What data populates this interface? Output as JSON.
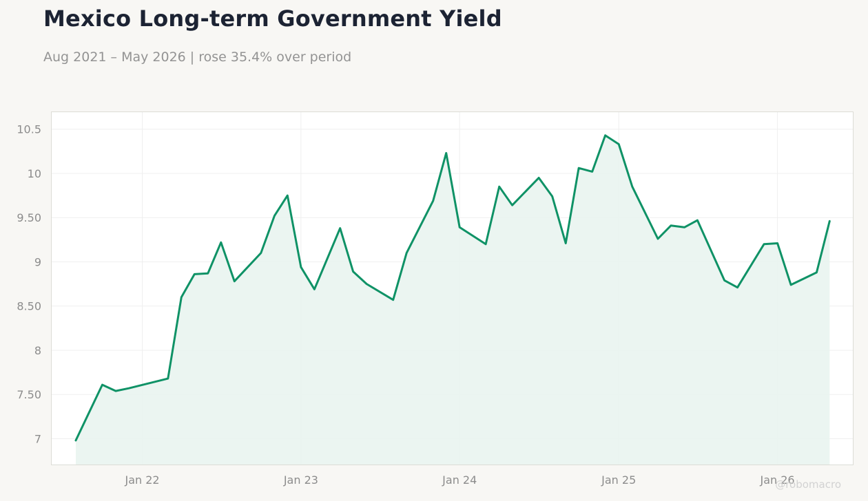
{
  "header": {
    "title": "Mexico Long-term Government Yield",
    "subtitle": "Aug 2021 – May 2026 | rose 35.4% over period"
  },
  "watermark": "@robomacro",
  "colors": {
    "line": "#0f9266",
    "area": "#e9f4f0",
    "grid": "#efefef",
    "frame": "#dcdcd6",
    "plot_bg": "#ffffff",
    "page_bg": "#f8f7f4"
  },
  "chart_data": {
    "type": "area",
    "title": "Mexico Long-term Government Yield",
    "subtitle": "Aug 2021 – May 2026 | rose 35.4% over period",
    "xlabel": "",
    "ylabel": "",
    "ylim": [
      6.7,
      10.7
    ],
    "xlim": [
      "2021-06-05",
      "2026-06-25"
    ],
    "grid": true,
    "legend": "none",
    "y_ticks": [
      {
        "value": 7,
        "label": "7"
      },
      {
        "value": 7.5,
        "label": "7.50"
      },
      {
        "value": 8,
        "label": "8"
      },
      {
        "value": 8.5,
        "label": "8.50"
      },
      {
        "value": 9,
        "label": "9"
      },
      {
        "value": 9.5,
        "label": "9.50"
      },
      {
        "value": 10,
        "label": "10"
      },
      {
        "value": 10.5,
        "label": "10.5"
      }
    ],
    "x_ticks": [
      {
        "date": "2022-01-01",
        "label": "Jan 22"
      },
      {
        "date": "2023-01-01",
        "label": "Jan 23"
      },
      {
        "date": "2024-01-01",
        "label": "Jan 24"
      },
      {
        "date": "2025-01-01",
        "label": "Jan 25"
      },
      {
        "date": "2026-01-01",
        "label": "Jan 26"
      }
    ],
    "series": [
      {
        "x": [
          "2021-08-01",
          "2021-10-01",
          "2021-11-01",
          "2021-12-01",
          "2022-03-01",
          "2022-04-01",
          "2022-05-01",
          "2022-06-01",
          "2022-07-01",
          "2022-08-01",
          "2022-10-01",
          "2022-11-01",
          "2022-12-01",
          "2023-01-01",
          "2023-02-01",
          "2023-04-01",
          "2023-05-01",
          "2023-06-01",
          "2023-08-01",
          "2023-09-01",
          "2023-11-01",
          "2023-12-01",
          "2024-01-01",
          "2024-03-01",
          "2024-04-01",
          "2024-05-01",
          "2024-07-01",
          "2024-08-01",
          "2024-09-01",
          "2024-10-01",
          "2024-11-01",
          "2024-12-01",
          "2025-01-01",
          "2025-02-01",
          "2025-04-01",
          "2025-05-01",
          "2025-06-01",
          "2025-07-01",
          "2025-09-01",
          "2025-10-01",
          "2025-12-01",
          "2026-01-01",
          "2026-02-01",
          "2026-04-01",
          "2026-05-01"
        ],
        "values": [
          6.98,
          7.61,
          7.54,
          7.57,
          7.68,
          8.6,
          8.86,
          8.87,
          9.22,
          8.78,
          9.1,
          9.52,
          9.75,
          8.94,
          8.69,
          9.38,
          8.89,
          8.75,
          8.57,
          9.1,
          9.69,
          10.23,
          9.39,
          9.2,
          9.85,
          9.64,
          9.95,
          9.74,
          9.21,
          10.06,
          10.02,
          10.43,
          10.33,
          9.85,
          9.26,
          9.41,
          9.39,
          9.47,
          8.79,
          8.71,
          9.2,
          9.21,
          8.74,
          8.88,
          9.46
        ]
      }
    ]
  }
}
